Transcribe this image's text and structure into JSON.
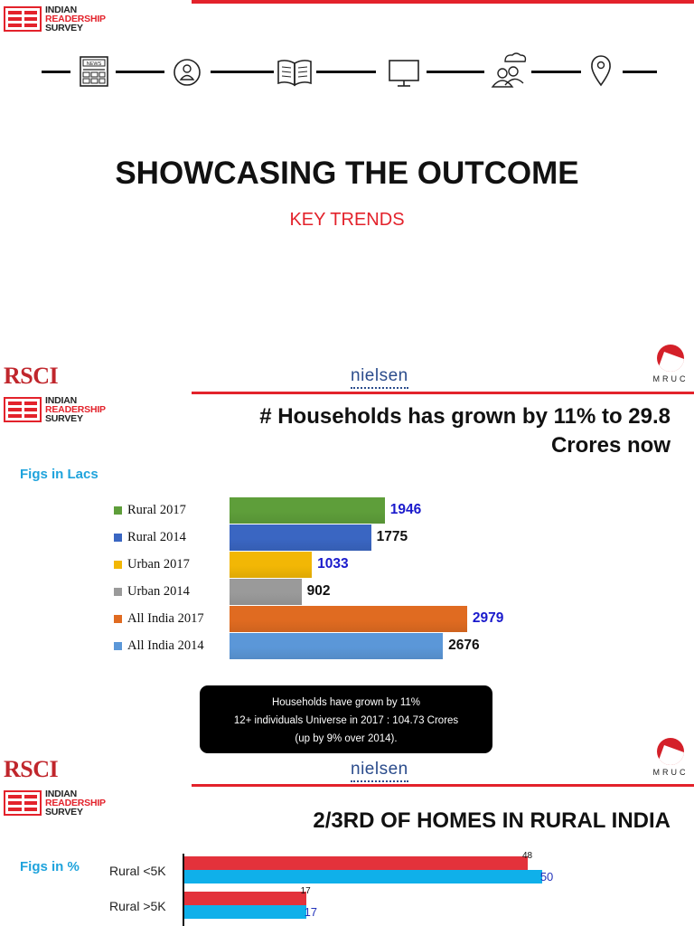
{
  "brand": {
    "irs_line1": "INDIAN",
    "irs_line2": "READERSHIP",
    "irs_line3": "SURVEY",
    "rsci": "RSCI",
    "nielsen": "nielsen",
    "mruc": "MRUC"
  },
  "slide1": {
    "icons": [
      "newspaper-icon",
      "person-icon",
      "open-book-icon",
      "monitor-icon",
      "cloud-people-icon",
      "location-pin-icon"
    ],
    "news_label": "NEWS",
    "title": "SHOWCASING THE OUTCOME",
    "subtitle": "KEY TRENDS"
  },
  "slide2": {
    "title_line1": "# Households  has grown by 11% to 29.8",
    "title_line2": "Crores now",
    "figs_label": "Figs in Lacs",
    "chart_data": {
      "type": "bar",
      "orientation": "horizontal",
      "categories": [
        "Rural 2017",
        "Rural 2014",
        "Urban 2017",
        "Urban 2014",
        "All India 2017",
        "All India 2014"
      ],
      "values": [
        1946,
        1775,
        1033,
        902,
        2979,
        2676
      ],
      "colors": [
        "#5e9e3a",
        "#3a66c2",
        "#f2b705",
        "#9a9a9a",
        "#e06b21",
        "#5b97d8"
      ],
      "label_colors": [
        "#1a1acc",
        "#111111",
        "#1a1acc",
        "#111111",
        "#1a1acc",
        "#111111"
      ],
      "xlim": [
        0,
        3400
      ]
    },
    "callout": {
      "line1": "Households have grown by 11%",
      "line2": "12+ individuals Universe in 2017 : 104.73 Crores",
      "line3": "(up by 9% over 2014)."
    }
  },
  "slide3": {
    "title": "2/3RD OF HOMES IN RURAL INDIA",
    "figs_label": "Figs in %",
    "chart_data": {
      "type": "bar",
      "orientation": "horizontal",
      "categories": [
        "Rural <5K",
        "Rural >5K"
      ],
      "series": [
        {
          "values": [
            48,
            17
          ],
          "color": "#e3323b",
          "label_color": "#111111"
        },
        {
          "values": [
            50,
            17
          ],
          "color": "#0fb0ea",
          "label_color": "#2233bb"
        }
      ],
      "xlim": [
        0,
        60
      ]
    }
  }
}
